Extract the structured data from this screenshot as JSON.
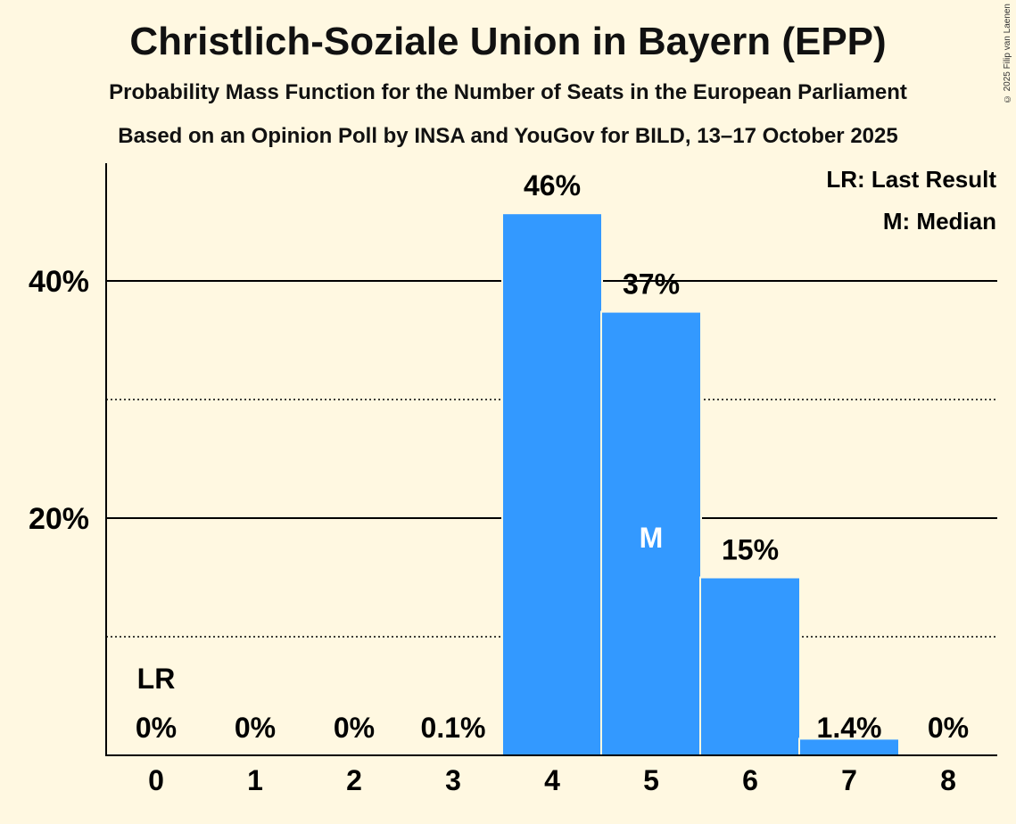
{
  "title": "Christlich-Soziale Union in Bayern (EPP)",
  "subtitle1": "Probability Mass Function for the Number of Seats in the European Parliament",
  "subtitle2": "Based on an Opinion Poll by INSA and YouGov for BILD, 13–17 October 2025",
  "copyright": "© 2025 Filip van Laenen",
  "colors": {
    "bar": "#3399FF",
    "background": "#FFF8E1"
  },
  "chart_data": {
    "type": "bar",
    "categories": [
      "0",
      "1",
      "2",
      "3",
      "4",
      "5",
      "6",
      "7",
      "8"
    ],
    "values": [
      0,
      0,
      0,
      0.1,
      45.7,
      37.4,
      15.0,
      1.4,
      0
    ],
    "data_labels": [
      "0%",
      "0%",
      "0%",
      "0.1%",
      "46%",
      "37%",
      "15%",
      "1.4%",
      "0%"
    ],
    "ylim": [
      0,
      50
    ],
    "yticks": [
      {
        "value": 20,
        "label": "20%"
      },
      {
        "value": 40,
        "label": "40%"
      }
    ],
    "minor_gridlines": [
      10,
      30
    ],
    "last_result": {
      "category": "0",
      "label": "LR"
    },
    "median": {
      "category": "5",
      "label": "M"
    },
    "legend": [
      "LR: Last Result",
      "M: Median"
    ],
    "legend_position": "top-right"
  }
}
